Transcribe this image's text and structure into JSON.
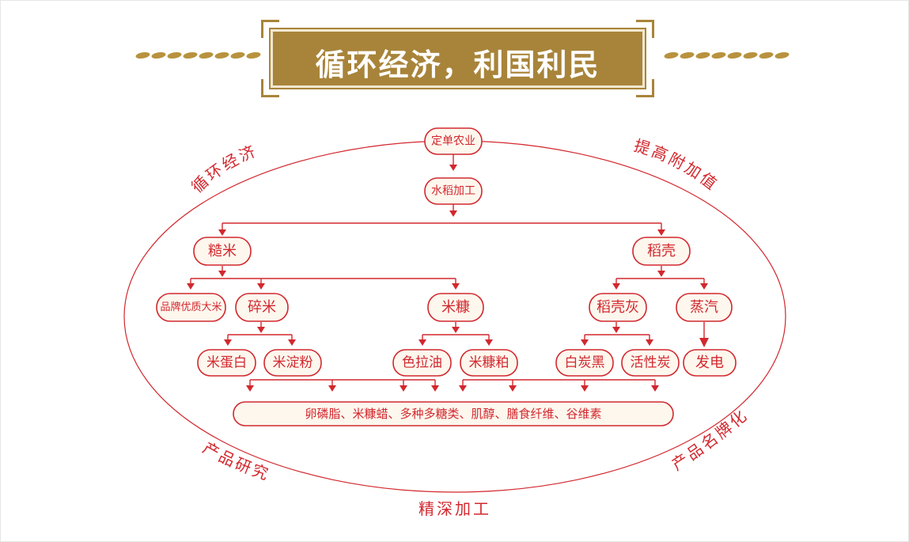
{
  "title": "循环经济，利国利民",
  "ring_labels": {
    "top_left": "循环经济",
    "top_right": "提高附加值",
    "bottom_left": "产品研究",
    "bottom_right": "产品名牌化",
    "bottom": "精深加工"
  },
  "nodes": {
    "order_farming": "定单农业",
    "rice_processing": "水稻加工",
    "brown_rice": "糙米",
    "rice_husk": "稻壳",
    "brand_rice": "品牌优质大米",
    "broken_rice": "碎米",
    "rice_bran": "米糠",
    "husk_ash": "稻壳灰",
    "steam": "蒸汽",
    "rice_protein": "米蛋白",
    "rice_starch": "米淀粉",
    "salad_oil": "色拉油",
    "bran_meal": "米糠粕",
    "white_carbon": "白炭黑",
    "activated_carbon": "活性炭",
    "power": "发电",
    "byproducts": "卵磷脂、米糠蜡、多种多糖类、肌醇、膳食纤维、谷维素"
  },
  "colors": {
    "red": "#d2282e",
    "gold": "#a8843a",
    "node_fill": "#fdf7ee"
  }
}
